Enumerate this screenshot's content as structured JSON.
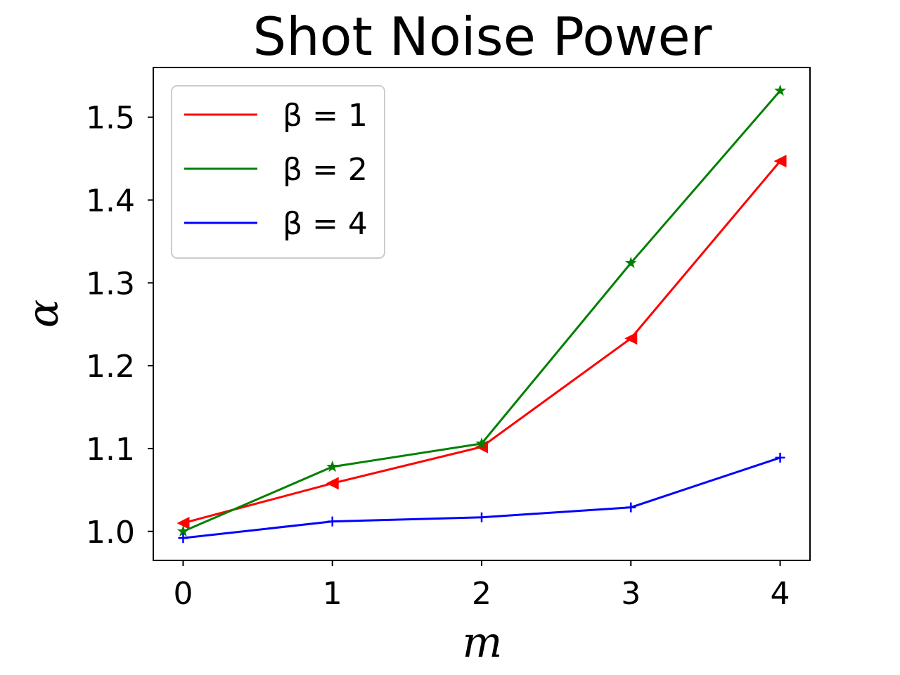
{
  "chart_data": {
    "type": "line",
    "title": "Shot Noise Power",
    "xlabel": "m",
    "ylabel": "α",
    "x": [
      0,
      1,
      2,
      3,
      4
    ],
    "xticks": [
      "0",
      "1",
      "2",
      "3",
      "4"
    ],
    "yticks": [
      "1.0",
      "1.1",
      "1.2",
      "1.3",
      "1.4",
      "1.5"
    ],
    "xlim": [
      -0.2,
      4.2
    ],
    "ylim": [
      0.965,
      1.56
    ],
    "grid": false,
    "legend_position": "top-left",
    "series": [
      {
        "name": "β = 1",
        "color": "#ff0000",
        "marker": "triangle-left",
        "values": [
          1.01,
          1.058,
          1.102,
          1.233,
          1.447
        ]
      },
      {
        "name": "β = 2",
        "color": "#008000",
        "marker": "star",
        "values": [
          1.0,
          1.078,
          1.106,
          1.324,
          1.532
        ]
      },
      {
        "name": "β = 4",
        "color": "#0000ff",
        "marker": "plus",
        "values": [
          0.992,
          1.012,
          1.017,
          1.029,
          1.089
        ]
      }
    ]
  }
}
